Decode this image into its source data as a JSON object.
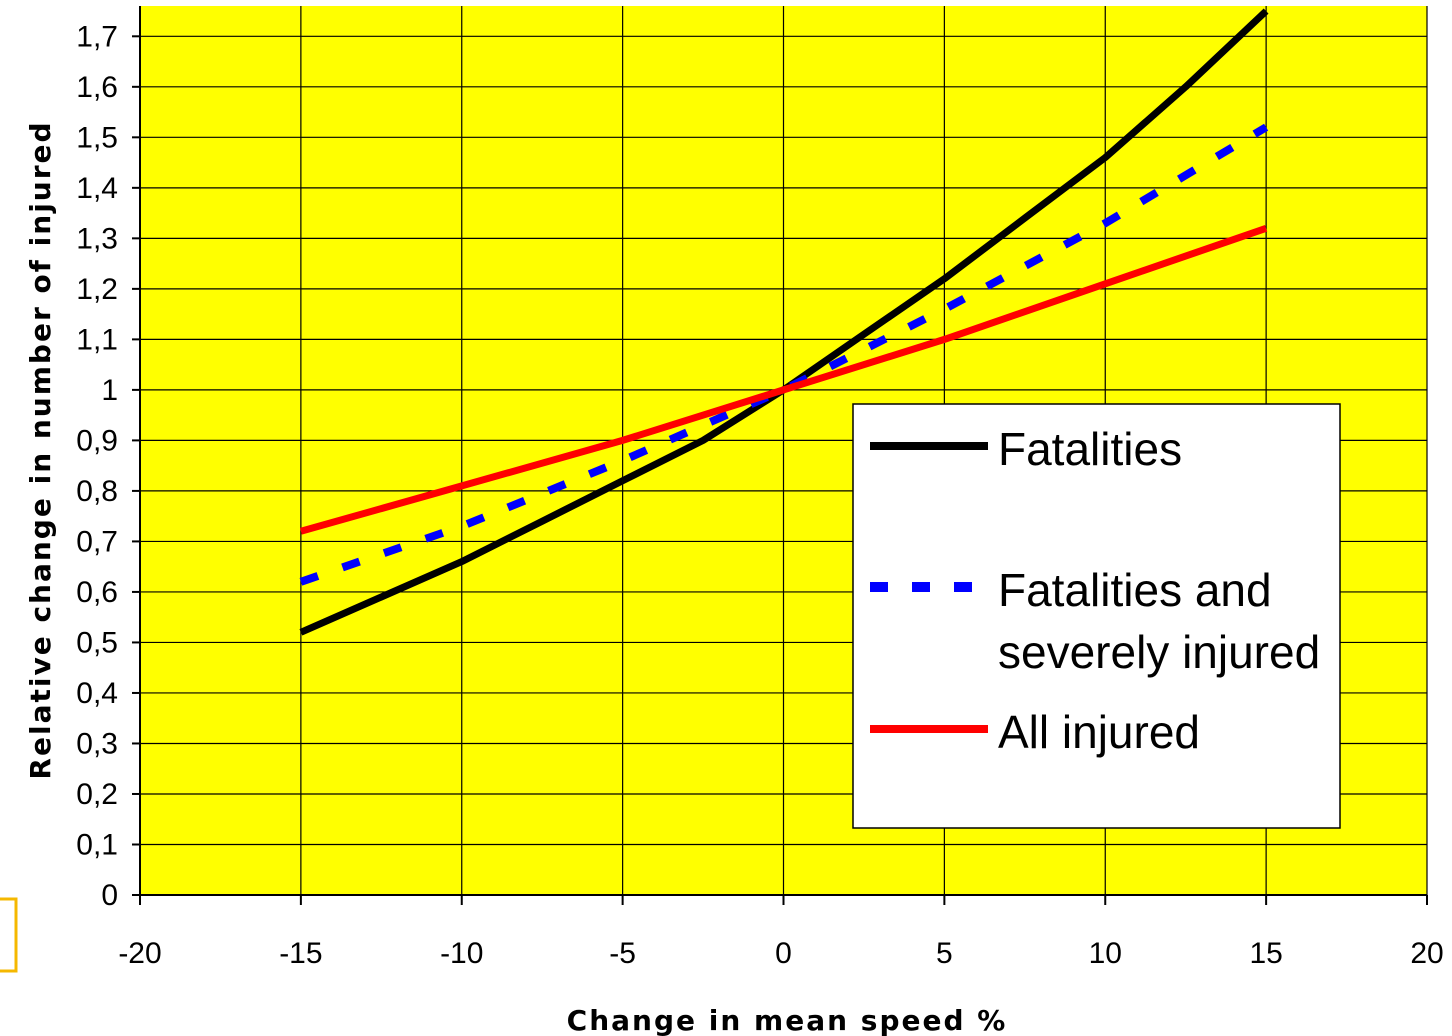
{
  "chart_data": {
    "type": "line",
    "title": "",
    "xlabel": "Change in mean speed %",
    "ylabel": "Relative change in number of injured",
    "xlim": [
      -20,
      20
    ],
    "ylim": [
      0,
      1.76
    ],
    "x_ticks": [
      -20,
      -15,
      -10,
      -5,
      0,
      5,
      10,
      15,
      20
    ],
    "x_tick_labels": [
      "-20",
      "-15",
      "-10",
      "-5",
      "0",
      "5",
      "10",
      "15",
      "20"
    ],
    "y_ticks": [
      0,
      0.1,
      0.2,
      0.3,
      0.4,
      0.5,
      0.6,
      0.7,
      0.8,
      0.9,
      1,
      1.1,
      1.2,
      1.3,
      1.4,
      1.5,
      1.6,
      1.7
    ],
    "y_tick_labels": [
      "0",
      "0,1",
      "0,2",
      "0,3",
      "0,4",
      "0,5",
      "0,6",
      "0,7",
      "0,8",
      "0,9",
      "1",
      "1,1",
      "1,2",
      "1,3",
      "1,4",
      "1,5",
      "1,6",
      "1,7"
    ],
    "grid": true,
    "background_color": "#ffff00",
    "legend": {
      "position": "right",
      "entries": [
        {
          "lines": [
            "Fatalities"
          ]
        },
        {
          "lines": [
            "Fatalities and",
            "severely injured"
          ]
        },
        {
          "lines": [
            "All injured"
          ]
        }
      ]
    },
    "series": [
      {
        "name": "Fatalities",
        "color": "#000000",
        "style": "solid",
        "x": [
          -15,
          -12.5,
          -10,
          -7.5,
          -5,
          -2.5,
          0,
          2.5,
          5,
          7.5,
          10,
          12.5,
          15
        ],
        "y": [
          0.52,
          0.59,
          0.66,
          0.74,
          0.82,
          0.9,
          1.0,
          1.11,
          1.22,
          1.34,
          1.46,
          1.6,
          1.75
        ]
      },
      {
        "name": "Fatalities and severely injured",
        "color": "#0000ff",
        "style": "dashed",
        "x": [
          -15,
          -10,
          -5,
          0,
          5,
          10,
          15
        ],
        "y": [
          0.62,
          0.73,
          0.86,
          1.0,
          1.16,
          1.33,
          1.52
        ]
      },
      {
        "name": "All injured",
        "color": "#ff0000",
        "style": "solid",
        "x": [
          -15,
          -10,
          -5,
          0,
          5,
          10,
          15
        ],
        "y": [
          0.72,
          0.81,
          0.9,
          1.0,
          1.1,
          1.21,
          1.32
        ]
      }
    ]
  }
}
